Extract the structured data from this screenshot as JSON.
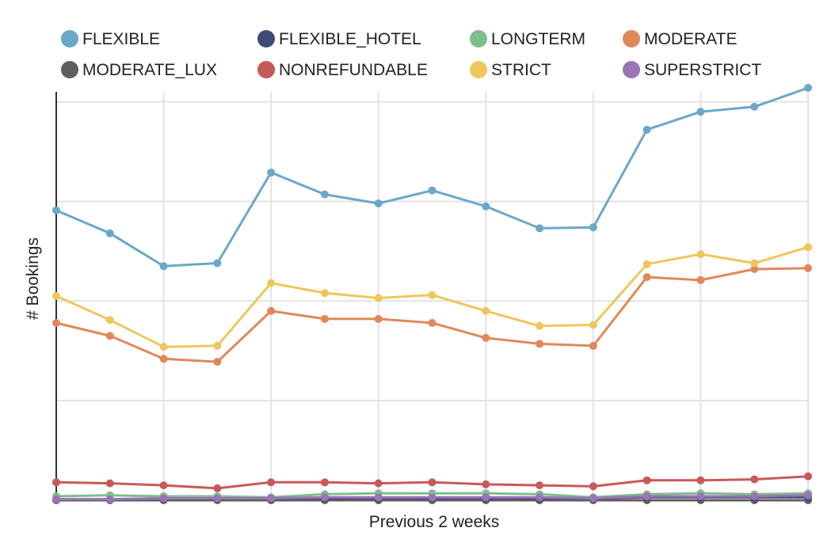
{
  "chart_data": {
    "type": "line",
    "title": "",
    "xlabel": "Previous 2 weeks",
    "ylabel": "# Bookings",
    "x": [
      1,
      2,
      3,
      4,
      5,
      6,
      7,
      8,
      9,
      10,
      11,
      12,
      13,
      14,
      15
    ],
    "ylim": [
      0,
      410
    ],
    "xlim": [
      1,
      15
    ],
    "grid": true,
    "legend_position": "top",
    "series": [
      {
        "name": "FLEXIBLE",
        "color": "#6aa8c9",
        "values": [
          291,
          268,
          235,
          238,
          329,
          307,
          298,
          311,
          295,
          273,
          274,
          372,
          390,
          395,
          414
        ]
      },
      {
        "name": "FLEXIBLE_HOTEL",
        "color": "#3f4a78",
        "values": [
          1,
          1,
          2,
          2,
          2,
          2,
          2,
          2,
          2,
          2,
          2,
          3,
          3,
          3,
          3
        ]
      },
      {
        "name": "LONGTERM",
        "color": "#7fbd8c",
        "values": [
          4,
          5,
          4,
          4,
          3,
          6,
          7,
          7,
          7,
          6,
          3,
          6,
          7,
          6,
          7
        ]
      },
      {
        "name": "MODERATE",
        "color": "#e0885a",
        "values": [
          178,
          165,
          142,
          139,
          190,
          182,
          182,
          178,
          163,
          157,
          155,
          224,
          221,
          232,
          233
        ]
      },
      {
        "name": "MODERATE_LUX",
        "color": "#5e5e5e",
        "values": [
          0,
          0,
          0,
          0,
          0,
          0,
          0,
          0,
          0,
          0,
          0,
          0,
          0,
          0,
          0
        ]
      },
      {
        "name": "NONREFUNDABLE",
        "color": "#c8595a",
        "values": [
          18,
          17,
          15,
          12,
          18,
          18,
          17,
          18,
          16,
          15,
          14,
          20,
          20,
          21,
          24
        ]
      },
      {
        "name": "STRICT",
        "color": "#eec75c",
        "values": [
          205,
          181,
          154,
          155,
          218,
          208,
          203,
          206,
          190,
          175,
          176,
          237,
          247,
          238,
          254
        ]
      },
      {
        "name": "SUPERSTRICT",
        "color": "#9b73b8",
        "values": [
          1,
          1,
          2,
          2,
          2,
          3,
          3,
          3,
          3,
          3,
          2,
          4,
          4,
          4,
          5
        ]
      }
    ]
  }
}
